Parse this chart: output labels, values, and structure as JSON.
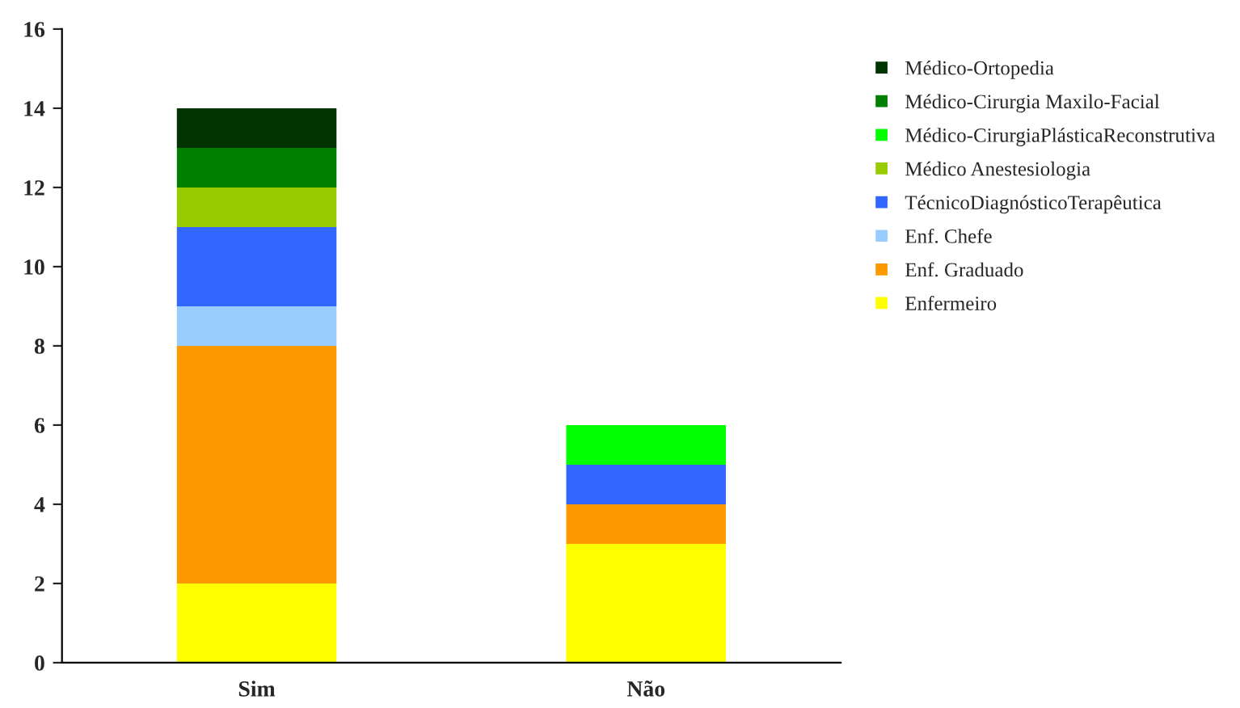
{
  "chart_data": {
    "type": "bar",
    "stacked": true,
    "categories": [
      "Sim",
      "Não"
    ],
    "series": [
      {
        "name": "Enfermeiro",
        "color": "#ffff00",
        "values": [
          2,
          3
        ]
      },
      {
        "name": "Enf. Graduado",
        "color": "#ff9900",
        "values": [
          6,
          1
        ]
      },
      {
        "name": "Enf. Chefe",
        "color": "#99ccff",
        "values": [
          1,
          0
        ]
      },
      {
        "name": "TécnicoDiagnósticoTerapêutica",
        "color": "#3366ff",
        "values": [
          2,
          1
        ]
      },
      {
        "name": "Médico Anestesiologia",
        "color": "#99cc00",
        "values": [
          1,
          0
        ]
      },
      {
        "name": "Médico-CirurgiaPlásticaReconstrutiva",
        "color": "#00ff00",
        "values": [
          0,
          1
        ]
      },
      {
        "name": "Médico-Cirurgia Maxilo-Facial",
        "color": "#008000",
        "values": [
          1,
          0
        ]
      },
      {
        "name": "Médico-Ortopedia",
        "color": "#003300",
        "values": [
          1,
          0
        ]
      }
    ],
    "ylim": [
      0,
      16
    ],
    "yticks": [
      0,
      2,
      4,
      6,
      8,
      10,
      12,
      14,
      16
    ],
    "grid": false,
    "legend": "right"
  }
}
